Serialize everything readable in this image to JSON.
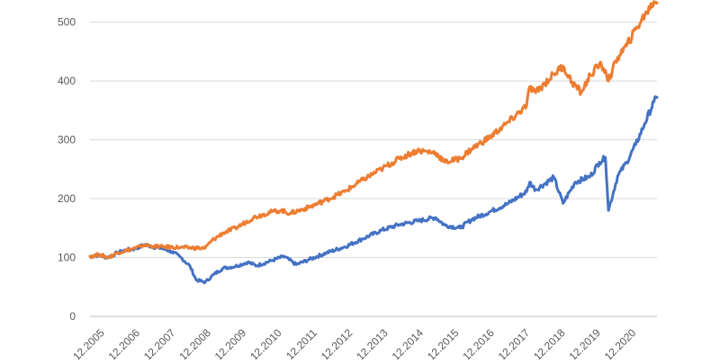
{
  "chart_data": {
    "type": "line",
    "title": "",
    "xlabel": "",
    "ylabel": "",
    "ylim": [
      0,
      540
    ],
    "yticks": [
      0,
      100,
      200,
      300,
      400,
      500
    ],
    "x_range": [
      "2005-12",
      "2021-07"
    ],
    "x_tick_labels": [
      "12.2005",
      "12.2006",
      "12.2007",
      "12.2008",
      "12.2009",
      "12.2010",
      "12.2011",
      "12.2012",
      "12.2013",
      "12.2014",
      "12.2015",
      "12.2016",
      "12.2017",
      "12.2018",
      "12.2019",
      "12.2020"
    ],
    "grid": true,
    "legend": "none",
    "series": [
      {
        "color": "#4472C4",
        "points": [
          [
            "2005-12",
            102
          ],
          [
            "2006-03",
            104
          ],
          [
            "2006-06",
            100
          ],
          [
            "2006-09",
            108
          ],
          [
            "2006-12",
            113
          ],
          [
            "2007-03",
            115
          ],
          [
            "2007-06",
            122
          ],
          [
            "2007-09",
            118
          ],
          [
            "2007-12",
            115
          ],
          [
            "2008-03",
            110
          ],
          [
            "2008-06",
            100
          ],
          [
            "2008-09",
            85
          ],
          [
            "2008-11",
            62
          ],
          [
            "2009-02",
            58
          ],
          [
            "2009-05",
            72
          ],
          [
            "2009-08",
            82
          ],
          [
            "2009-12",
            85
          ],
          [
            "2010-04",
            92
          ],
          [
            "2010-07",
            86
          ],
          [
            "2010-12",
            95
          ],
          [
            "2011-04",
            102
          ],
          [
            "2011-08",
            88
          ],
          [
            "2011-12",
            96
          ],
          [
            "2012-06",
            108
          ],
          [
            "2012-12",
            118
          ],
          [
            "2013-06",
            132
          ],
          [
            "2013-12",
            146
          ],
          [
            "2014-06",
            156
          ],
          [
            "2014-12",
            162
          ],
          [
            "2015-06",
            168
          ],
          [
            "2015-09",
            155
          ],
          [
            "2016-02",
            150
          ],
          [
            "2016-06",
            165
          ],
          [
            "2016-12",
            178
          ],
          [
            "2017-06",
            192
          ],
          [
            "2017-12",
            212
          ],
          [
            "2018-01",
            228
          ],
          [
            "2018-03",
            215
          ],
          [
            "2018-09",
            236
          ],
          [
            "2018-12",
            192
          ],
          [
            "2019-04",
            228
          ],
          [
            "2019-09",
            238
          ],
          [
            "2019-12",
            262
          ],
          [
            "2020-02",
            270
          ],
          [
            "2020-03",
            180
          ],
          [
            "2020-06",
            238
          ],
          [
            "2020-09",
            262
          ],
          [
            "2020-12",
            292
          ],
          [
            "2021-03",
            328
          ],
          [
            "2021-06",
            365
          ],
          [
            "2021-07",
            372
          ]
        ]
      },
      {
        "color": "#ED7D31",
        "points": [
          [
            "2005-12",
            102
          ],
          [
            "2006-03",
            105
          ],
          [
            "2006-06",
            100
          ],
          [
            "2006-09",
            108
          ],
          [
            "2006-12",
            112
          ],
          [
            "2007-03",
            116
          ],
          [
            "2007-06",
            121
          ],
          [
            "2007-09",
            119
          ],
          [
            "2007-12",
            118
          ],
          [
            "2008-06",
            117
          ],
          [
            "2008-12",
            116
          ],
          [
            "2009-02",
            116
          ],
          [
            "2009-04",
            128
          ],
          [
            "2009-08",
            142
          ],
          [
            "2009-12",
            150
          ],
          [
            "2010-06",
            168
          ],
          [
            "2010-12",
            178
          ],
          [
            "2011-03",
            180
          ],
          [
            "2011-06",
            175
          ],
          [
            "2011-12",
            185
          ],
          [
            "2012-06",
            198
          ],
          [
            "2012-12",
            212
          ],
          [
            "2013-06",
            232
          ],
          [
            "2013-12",
            250
          ],
          [
            "2014-06",
            268
          ],
          [
            "2014-12",
            282
          ],
          [
            "2015-06",
            278
          ],
          [
            "2015-09",
            262
          ],
          [
            "2016-02",
            268
          ],
          [
            "2016-06",
            285
          ],
          [
            "2016-12",
            305
          ],
          [
            "2017-06",
            330
          ],
          [
            "2017-12",
            358
          ],
          [
            "2018-01",
            390
          ],
          [
            "2018-03",
            380
          ],
          [
            "2018-09",
            412
          ],
          [
            "2018-12",
            425
          ],
          [
            "2019-03",
            398
          ],
          [
            "2019-06",
            380
          ],
          [
            "2019-09",
            410
          ],
          [
            "2019-12",
            428
          ],
          [
            "2020-02",
            418
          ],
          [
            "2020-03",
            400
          ],
          [
            "2020-06",
            440
          ],
          [
            "2020-09",
            460
          ],
          [
            "2020-12",
            488
          ],
          [
            "2021-03",
            512
          ],
          [
            "2021-06",
            535
          ],
          [
            "2021-07",
            532
          ]
        ]
      }
    ]
  }
}
